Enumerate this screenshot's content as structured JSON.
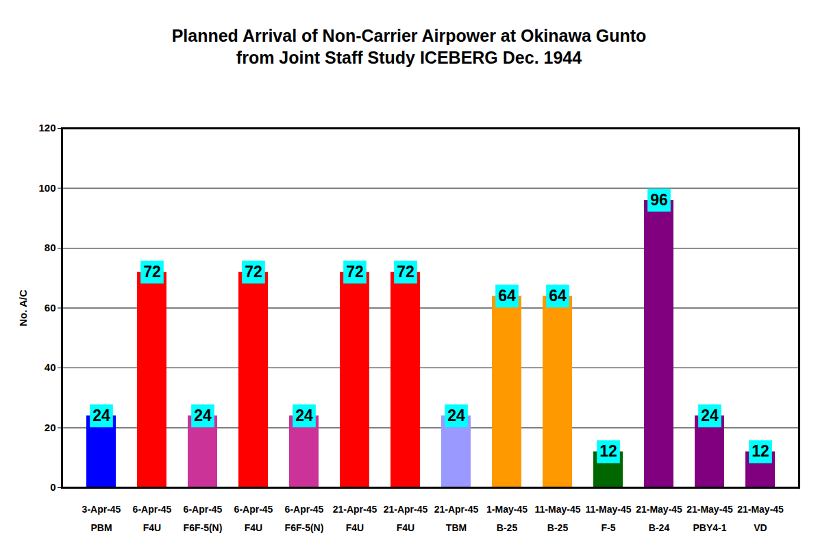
{
  "chart_data": {
    "type": "bar",
    "title": "Planned Arrival of Non-Carrier Airpower at Okinawa Gunto",
    "subtitle": "from Joint Staff Study ICEBERG Dec. 1944",
    "y_label": "No. A/C",
    "categories": [
      "3-Apr-45\nPBM",
      "6-Apr-45\nF4U",
      "6-Apr-45\nF6F-5(N)",
      "6-Apr-45\nF4U",
      "6-Apr-45\nF6F-5(N)",
      "21-Apr-45\nF4U",
      "21-Apr-45\nF4U",
      "21-Apr-45\nTBM",
      "1-May-45\nB-25",
      "11-May-45\nB-25",
      "11-May-45\nF-5",
      "21-May-45\nB-24",
      "21-May-45\nPBY4-1",
      "21-May-45\nVD"
    ],
    "values": [
      24,
      72,
      24,
      72,
      24,
      72,
      72,
      24,
      64,
      64,
      12,
      96,
      24,
      12
    ],
    "colors": [
      "#0000FF",
      "#FF0000",
      "#CC3399",
      "#FF0000",
      "#CC3399",
      "#FF0000",
      "#FF0000",
      "#9999FF",
      "#FF9900",
      "#FF9900",
      "#006600",
      "#800080",
      "#800080",
      "#800080"
    ],
    "ylim": [
      0,
      120
    ],
    "yticks": [
      0,
      20,
      40,
      60,
      80,
      100,
      120
    ],
    "grid": true,
    "data_labels": true
  }
}
